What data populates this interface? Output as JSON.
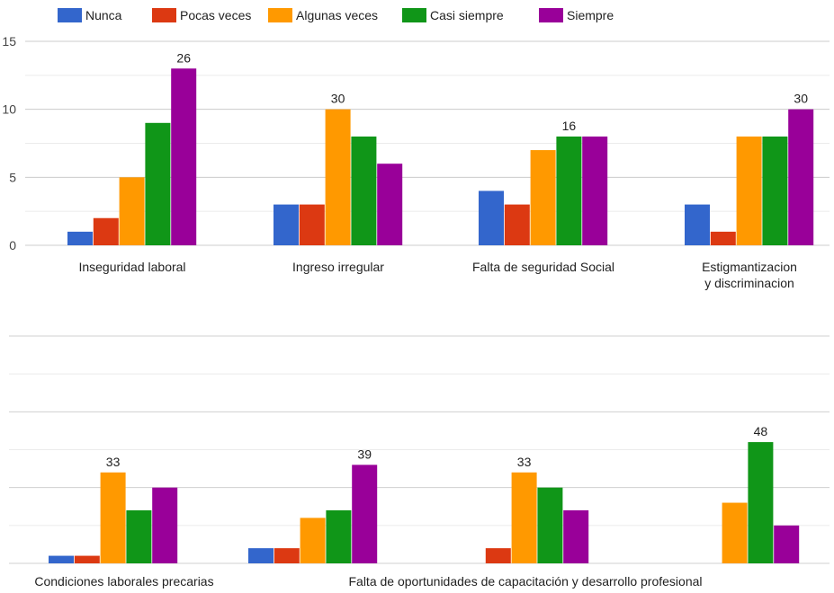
{
  "chart_data": [
    {
      "type": "bar",
      "title": "",
      "xlabel": "",
      "ylabel": "",
      "ylim": [
        0,
        15
      ],
      "yticks": [
        0,
        5,
        10,
        15
      ],
      "grid": true,
      "legend_position": "top",
      "categories": [
        [
          "Inseguridad laboral"
        ],
        [
          "Ingreso irregular"
        ],
        [
          "Falta de seguridad Social"
        ],
        [
          "Estigmantizacion",
          "y discriminacion"
        ]
      ],
      "series": [
        {
          "name": "Nunca",
          "color": "#3366cc",
          "values": [
            1,
            3,
            4,
            3
          ]
        },
        {
          "name": "Pocas veces",
          "color": "#dc3912",
          "values": [
            2,
            3,
            3,
            1
          ]
        },
        {
          "name": "Algunas veces",
          "color": "#ff9900",
          "values": [
            5,
            10,
            7,
            8
          ]
        },
        {
          "name": "Casi siempre",
          "color": "#109618",
          "values": [
            9,
            8,
            8,
            8
          ]
        },
        {
          "name": "Siempre",
          "color": "#990099",
          "values": [
            13,
            6,
            8,
            10
          ]
        }
      ],
      "annotations": [
        {
          "category": 0,
          "series": 4,
          "text": "26"
        },
        {
          "category": 1,
          "series": 2,
          "text": "30"
        },
        {
          "category": 2,
          "series": 3,
          "text": "16"
        },
        {
          "category": 3,
          "series": 4,
          "text": "30"
        }
      ]
    },
    {
      "type": "bar",
      "title": "",
      "xlabel": "",
      "ylabel": "",
      "ylim": [
        0,
        15
      ],
      "grid": true,
      "category_labels": [
        {
          "text": "Condiciones laborales precarias",
          "center_group": 0
        },
        {
          "text": "Falta de oportunidades de capacitación y desarrollo profesional",
          "center_group": 1.5
        }
      ],
      "series": [
        {
          "name": "Nunca",
          "color": "#3366cc",
          "values": [
            0.5,
            1,
            0,
            0
          ]
        },
        {
          "name": "Pocas veces",
          "color": "#dc3912",
          "values": [
            0.5,
            1,
            1,
            0
          ]
        },
        {
          "name": "Algunas veces",
          "color": "#ff9900",
          "values": [
            6,
            3,
            6,
            4
          ]
        },
        {
          "name": "Casi siempre",
          "color": "#109618",
          "values": [
            3.5,
            3.5,
            5,
            8
          ]
        },
        {
          "name": "Siempre",
          "color": "#990099",
          "values": [
            5,
            6.5,
            3.5,
            2.5
          ]
        }
      ],
      "annotations": [
        {
          "category": 0,
          "series": 2,
          "text": "33"
        },
        {
          "category": 1,
          "series": 4,
          "text": "39"
        },
        {
          "category": 2,
          "series": 2,
          "text": "33"
        },
        {
          "category": 3,
          "series": 3,
          "text": "48"
        }
      ]
    }
  ]
}
